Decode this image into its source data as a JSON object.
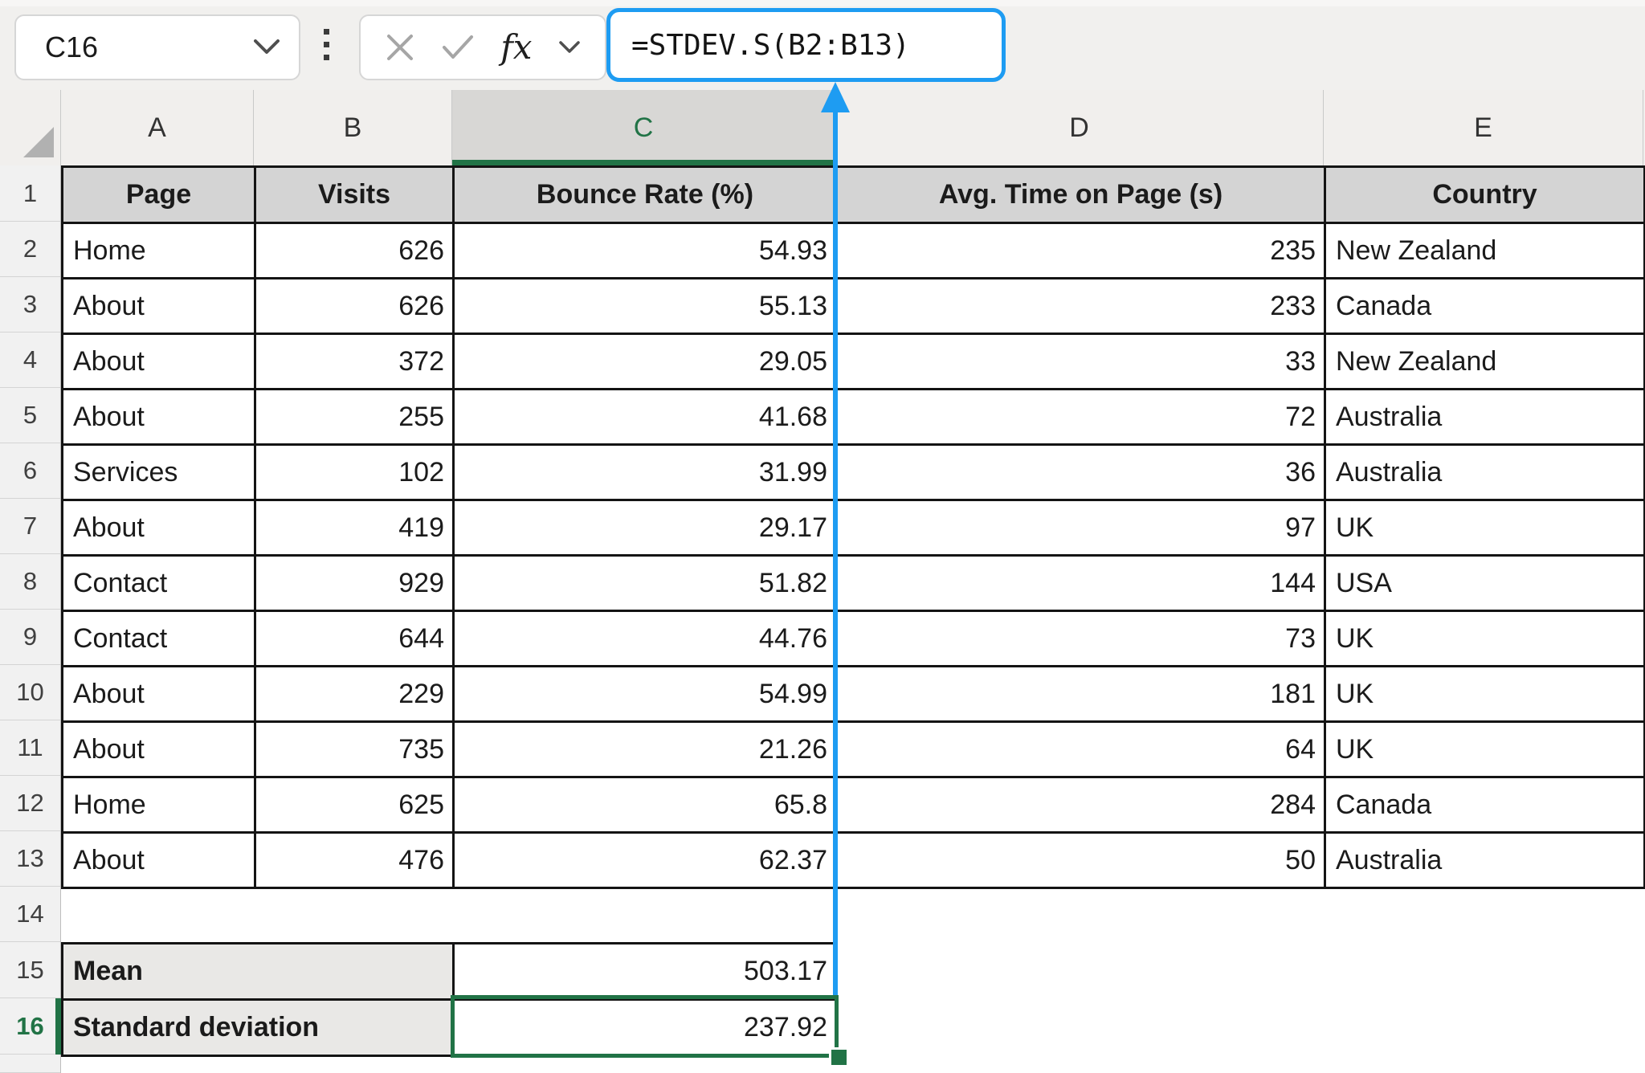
{
  "toolbar": {
    "name_box_value": "C16",
    "formula": "=STDEV.S(B2:B13)",
    "fx_label": "fx"
  },
  "colors": {
    "accent_blue": "#1e9cf2",
    "selection_green": "#217346",
    "header_fill": "#d4d4d4",
    "summary_label_fill": "#e9e8e6"
  },
  "sheet": {
    "column_letters": [
      "A",
      "B",
      "C",
      "D",
      "E"
    ],
    "selected_column": "C",
    "row_numbers": [
      "1",
      "2",
      "3",
      "4",
      "5",
      "6",
      "7",
      "8",
      "9",
      "10",
      "11",
      "12",
      "13",
      "14",
      "15",
      "16"
    ],
    "selected_row": "16",
    "table": {
      "headers": [
        "Page",
        "Visits",
        "Bounce Rate (%)",
        "Avg. Time on Page (s)",
        "Country"
      ],
      "rows": [
        {
          "page": "Home",
          "visits": "626",
          "bounce": "54.93",
          "time": "235",
          "country": "New Zealand"
        },
        {
          "page": "About",
          "visits": "626",
          "bounce": "55.13",
          "time": "233",
          "country": "Canada"
        },
        {
          "page": "About",
          "visits": "372",
          "bounce": "29.05",
          "time": "33",
          "country": "New Zealand"
        },
        {
          "page": "About",
          "visits": "255",
          "bounce": "41.68",
          "time": "72",
          "country": "Australia"
        },
        {
          "page": "Services",
          "visits": "102",
          "bounce": "31.99",
          "time": "36",
          "country": "Australia"
        },
        {
          "page": "About",
          "visits": "419",
          "bounce": "29.17",
          "time": "97",
          "country": "UK"
        },
        {
          "page": "Contact",
          "visits": "929",
          "bounce": "51.82",
          "time": "144",
          "country": "USA"
        },
        {
          "page": "Contact",
          "visits": "644",
          "bounce": "44.76",
          "time": "73",
          "country": "UK"
        },
        {
          "page": "About",
          "visits": "229",
          "bounce": "54.99",
          "time": "181",
          "country": "UK"
        },
        {
          "page": "About",
          "visits": "735",
          "bounce": "21.26",
          "time": "64",
          "country": "UK"
        },
        {
          "page": "Home",
          "visits": "625",
          "bounce": "65.8",
          "time": "284",
          "country": "Canada"
        },
        {
          "page": "About",
          "visits": "476",
          "bounce": "62.37",
          "time": "50",
          "country": "Australia"
        }
      ]
    },
    "summary": {
      "mean_label": "Mean",
      "mean_value": "503.17",
      "std_label": "Standard deviation",
      "std_value": "237.92"
    },
    "active_cell": "C16"
  }
}
